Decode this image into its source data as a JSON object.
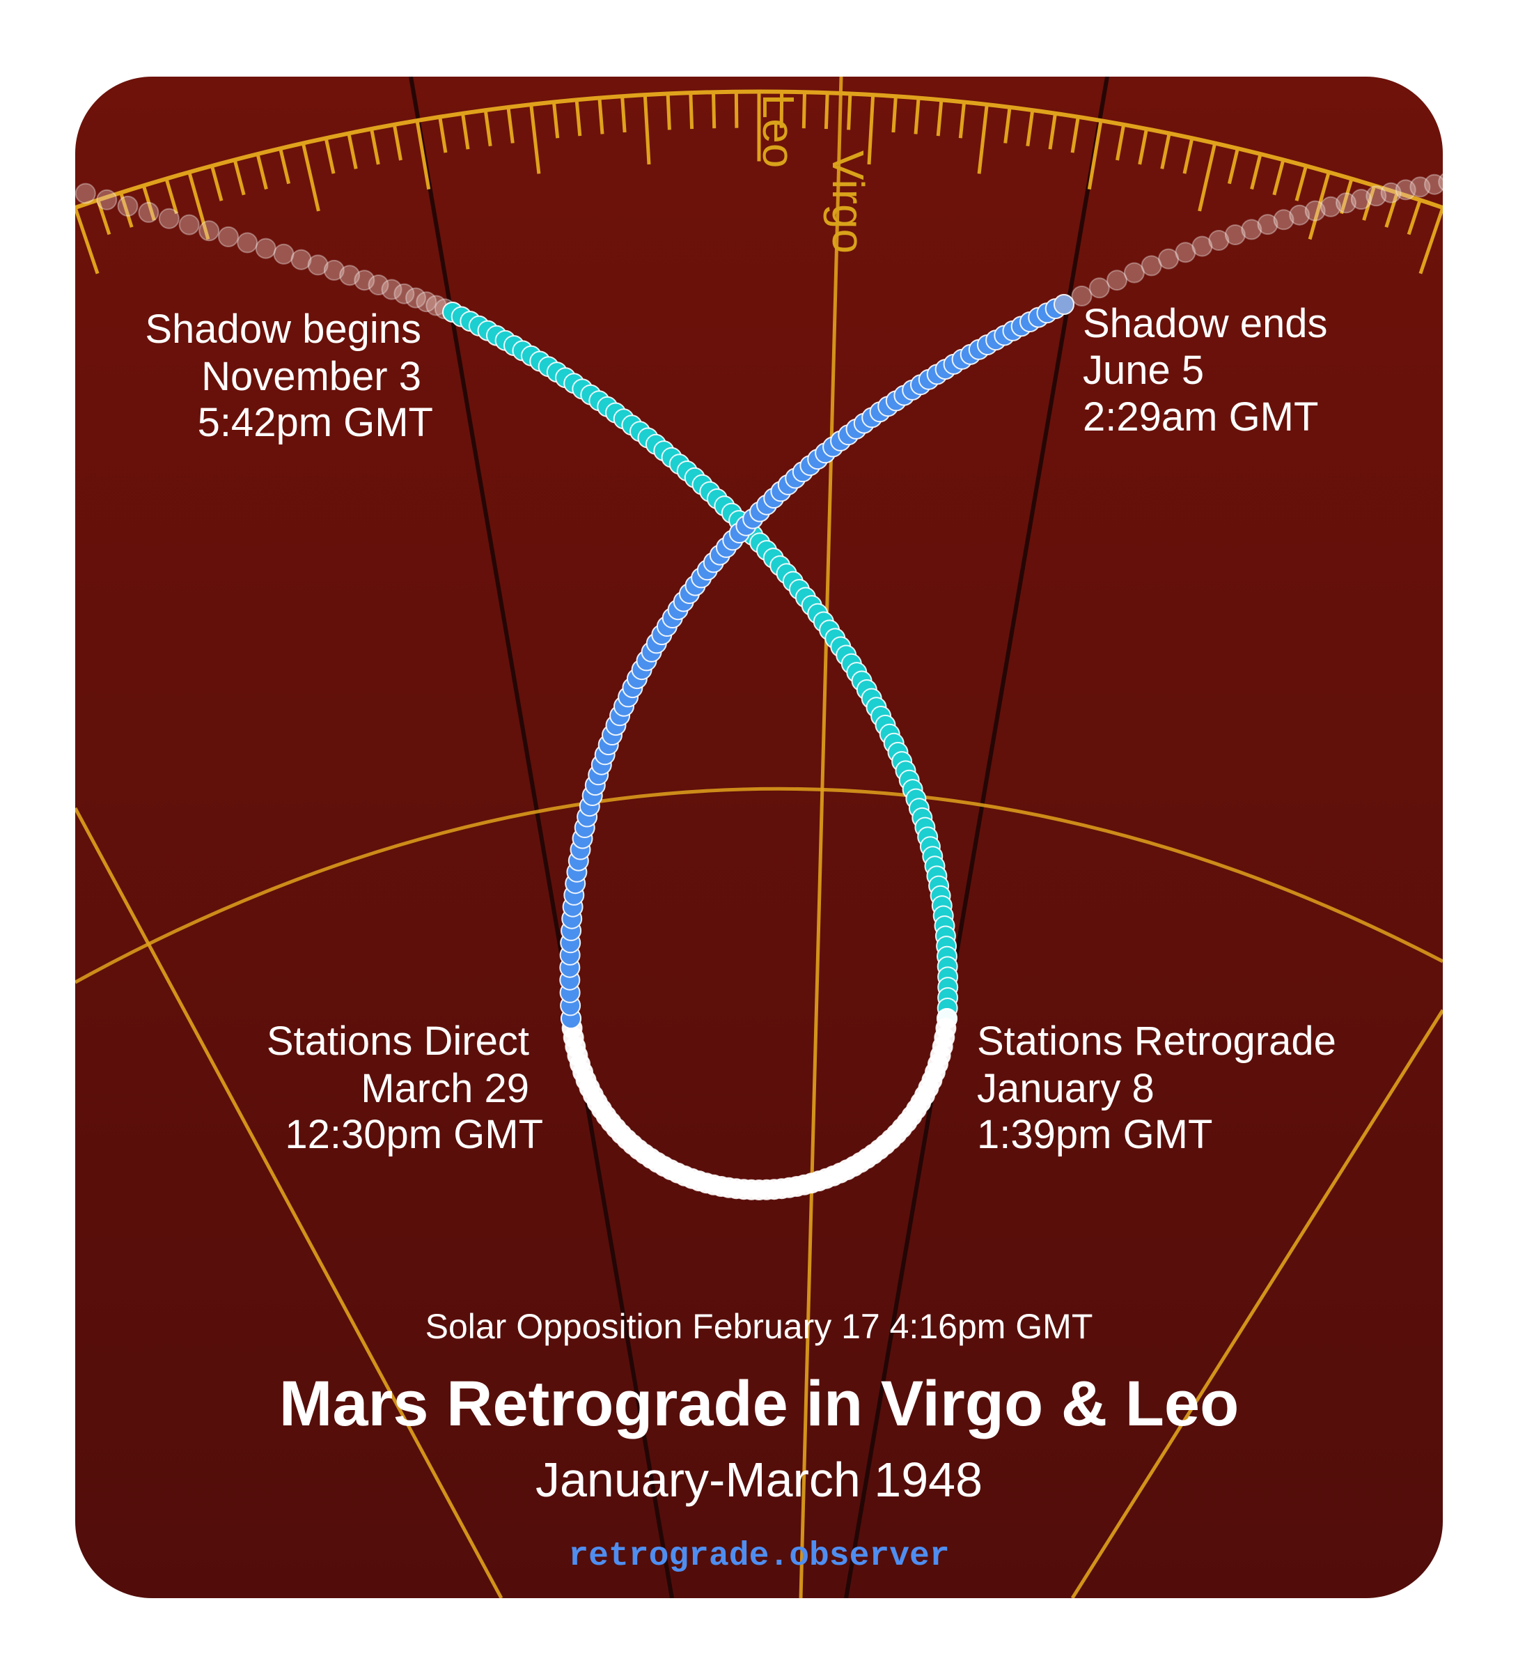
{
  "colors": {
    "background_top": "#6e120a",
    "background_bottom": "#520d0a",
    "gold": "#e0a21c",
    "ingress_dot": "#1ccfd0",
    "egress_dot": "#4a90ee",
    "retrograde_dot": "#ffffff",
    "site_text": "#4f8ef0"
  },
  "signs": {
    "left": "Leo",
    "right": "Virgo"
  },
  "events": {
    "shadow_begins": {
      "title": "Shadow begins",
      "date": "November 3",
      "time": "5:42pm GMT"
    },
    "shadow_ends": {
      "title": "Shadow ends",
      "date": "June 5",
      "time": "2:29am GMT"
    },
    "stations_direct": {
      "title": "Stations Direct",
      "date": "March 29",
      "time": "12:30pm GMT"
    },
    "stations_retrograde": {
      "title": "Stations Retrograde",
      "date": "January 8",
      "time": "1:39pm GMT"
    }
  },
  "opposition": "Solar Opposition February 17 4:16pm GMT",
  "title": "Mars Retrograde in Virgo & Leo",
  "subtitle": "January-March 1948",
  "site": "retrograde.observer",
  "icons": {
    "planet_path": "dot-icon"
  }
}
